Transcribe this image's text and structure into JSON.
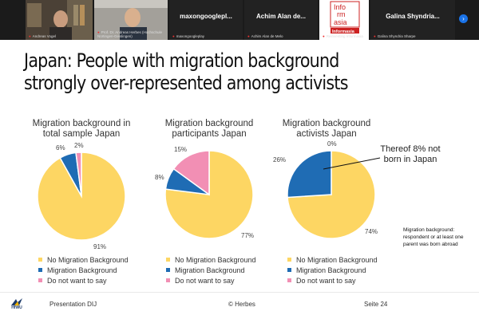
{
  "meeting": {
    "participants": [
      {
        "name": "Andreas Vogel",
        "display": ""
      },
      {
        "name": "Prof. Dr. Andreas Herbes (Hochschule Nürtingen-Geislingen)",
        "display": ""
      },
      {
        "name": "maxongoogleplay",
        "display": "maxongooglepl..."
      },
      {
        "name": "Achim Alan de Melo",
        "display": "Achim Alan de..."
      },
      {
        "name": "Reinventing Informasia",
        "display": ""
      },
      {
        "name": "Galina Shyndria Sharpe",
        "display": "Galina Shyndria..."
      }
    ],
    "logo_words": [
      "Info",
      "rm",
      "asia",
      "Informasia"
    ],
    "next_icon": "chevron-right-icon"
  },
  "slide": {
    "title": "Japan: People with migration background strongly over-represented among activists",
    "annotation": "Thereof 8% not born in Japan",
    "side_note": "Migration background: respondent or at least one parent was born abroad",
    "legend_labels": [
      "No Migration Background",
      "Migration Background",
      "Do not want to say"
    ]
  },
  "chart_data": [
    {
      "type": "pie",
      "title": "Migration background in total sample Japan",
      "categories": [
        "No Migration Background",
        "Migration Background",
        "Do not want to say"
      ],
      "values": [
        91,
        6,
        2
      ],
      "labels": [
        "91%",
        "6%",
        "2%"
      ],
      "colors": [
        "#FDD663",
        "#1F6CB4",
        "#F28FB4"
      ]
    },
    {
      "type": "pie",
      "title": "Migration background participants Japan",
      "categories": [
        "No Migration Background",
        "Migration Background",
        "Do not want to say"
      ],
      "values": [
        77,
        8,
        15
      ],
      "labels": [
        "77%",
        "8%",
        "15%"
      ],
      "colors": [
        "#FDD663",
        "#1F6CB4",
        "#F28FB4"
      ]
    },
    {
      "type": "pie",
      "title": "Migration background activists Japan",
      "categories": [
        "No Migration Background",
        "Migration Background",
        "Do not want to say"
      ],
      "values": [
        74,
        26,
        0
      ],
      "labels": [
        "74%",
        "26%",
        "0%"
      ],
      "colors": [
        "#FDD663",
        "#1F6CB4",
        "#F28FB4"
      ]
    }
  ],
  "footer": {
    "logo_text": "HfWU",
    "left": "Presentation DIJ",
    "center": "© Herbes",
    "right": "Seite 24"
  }
}
